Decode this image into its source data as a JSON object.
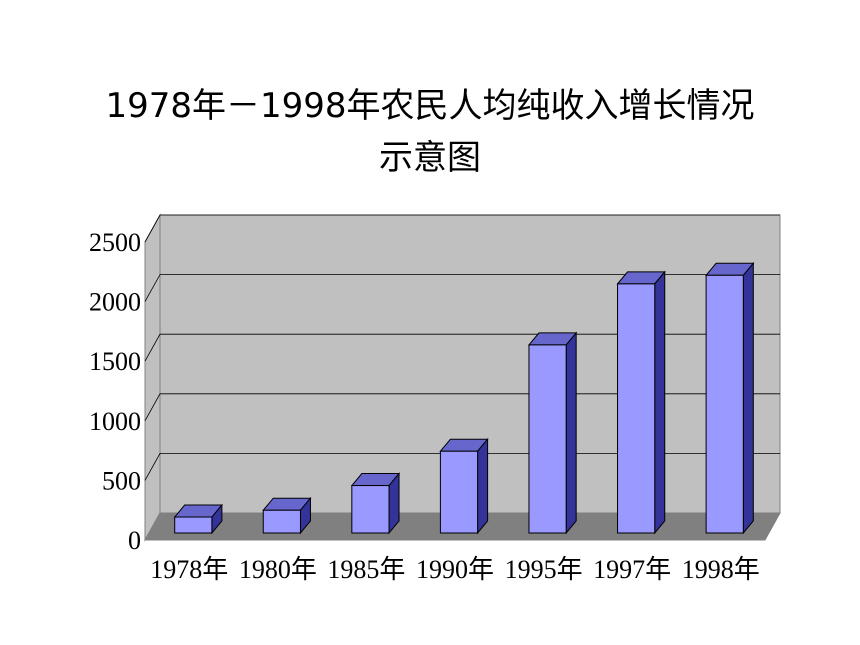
{
  "chart_data": {
    "type": "bar",
    "title_lines": [
      "1978年－1998年农民人均纯收入增长情况",
      "示意图"
    ],
    "categories": [
      "1978年",
      "1980年",
      "1985年",
      "1990年",
      "1995年",
      "1997年",
      "1998年"
    ],
    "values": [
      134,
      191,
      398,
      686,
      1578,
      2090,
      2162
    ],
    "ylim": [
      0,
      2500
    ],
    "yticks": [
      "0",
      "500",
      "1000",
      "1500",
      "2000",
      "2500"
    ],
    "grid": true,
    "colors": {
      "bar_front": "#9999ff",
      "bar_top": "#6666cc",
      "bar_side": "#333399",
      "wall": "#c0c0c0",
      "floor": "#808080",
      "grid": "#000000"
    }
  }
}
